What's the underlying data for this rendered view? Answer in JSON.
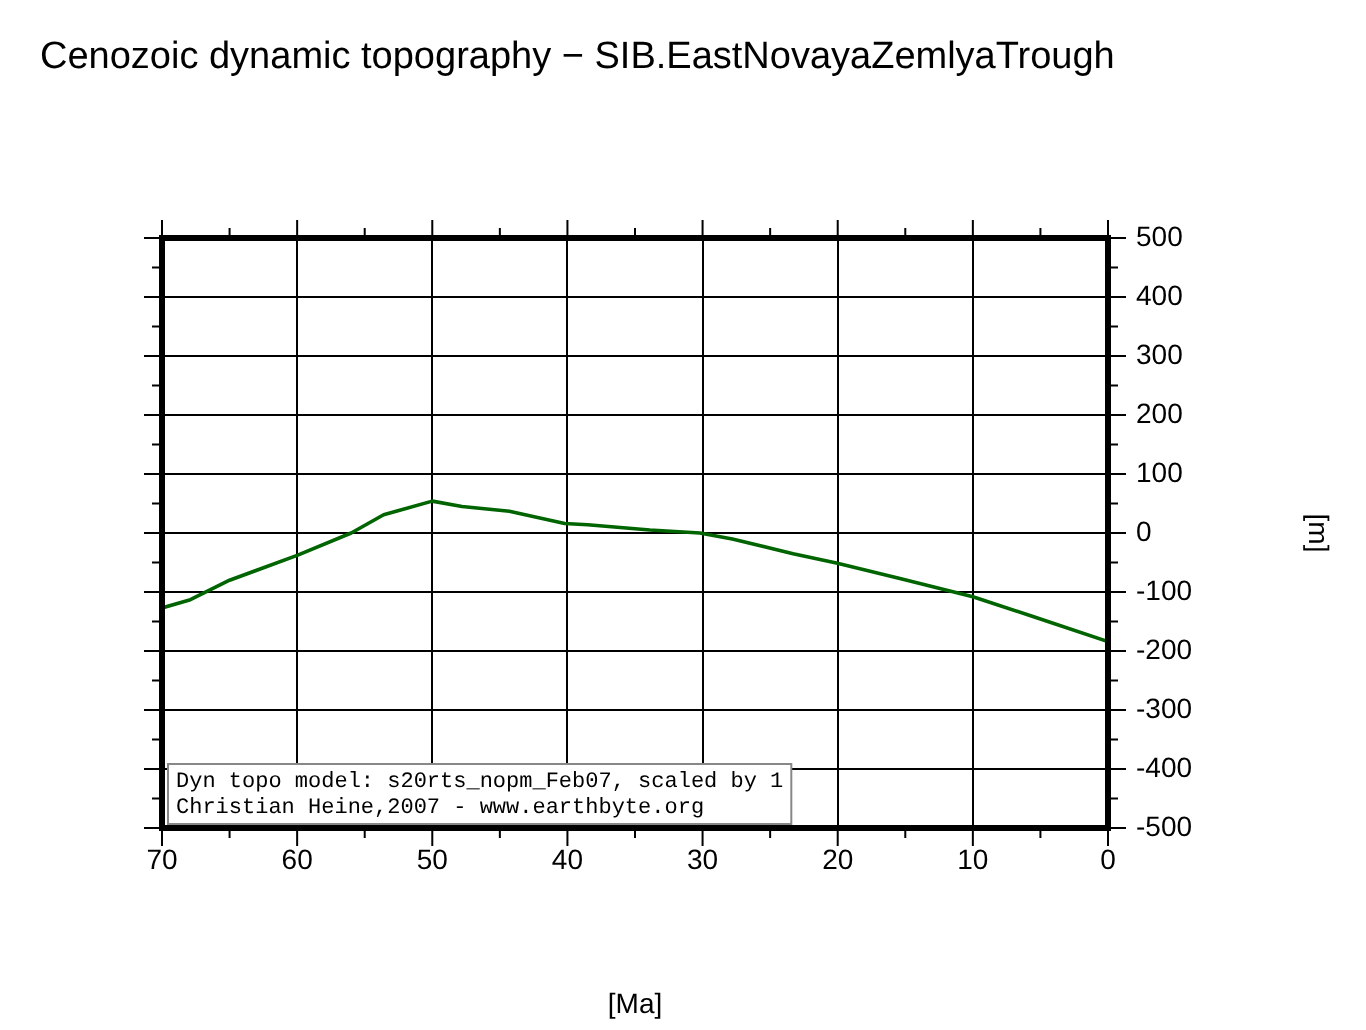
{
  "chart_data": {
    "type": "line",
    "title": "Cenozoic dynamic topography − SIB.EastNovayaZemlyaTrough",
    "xlabel": "[Ma]",
    "ylabel": "[m]",
    "x": [
      70,
      67.9,
      65,
      60,
      56,
      53.6,
      50,
      47.8,
      44.3,
      40.2,
      38.5,
      33.9,
      30.2,
      27.8,
      23.3,
      20.1,
      15.4,
      10,
      5.5,
      0
    ],
    "series": [
      {
        "color": "#006400",
        "values": [
          -127,
          -113,
          -80,
          -38,
          0,
          31,
          54,
          45,
          37,
          16,
          14,
          5,
          0,
          -10,
          -35,
          -51,
          -77,
          -108,
          -142,
          -184
        ]
      }
    ],
    "xlim": [
      70,
      0
    ],
    "xticks": [
      70,
      {
        "value": 65,
        "label": null
      },
      60,
      {
        "value": 55,
        "label": null
      },
      50,
      {
        "value": 45,
        "label": null
      },
      40,
      {
        "value": 35,
        "label": null
      },
      30,
      {
        "value": 25,
        "label": null
      },
      20,
      {
        "value": 15,
        "label": null
      },
      10,
      {
        "value": 5,
        "label": null
      },
      0
    ],
    "ylim": [
      -500,
      500
    ],
    "yticks": [
      -500,
      {
        "value": -450,
        "label": null
      },
      -400,
      {
        "value": -350,
        "label": null
      },
      -300,
      {
        "value": -250,
        "label": null
      },
      -200,
      {
        "value": -150,
        "label": null
      },
      -100,
      {
        "value": -50,
        "label": null
      },
      0,
      {
        "value": 50,
        "label": null
      },
      100,
      {
        "value": 150,
        "label": null
      },
      200,
      {
        "value": 250,
        "label": null
      },
      300,
      {
        "value": 350,
        "label": null
      },
      400,
      {
        "value": 450,
        "label": null
      },
      500
    ],
    "grid": true,
    "legend": false,
    "marker": "none",
    "line_style": "solid",
    "annotations": [
      "Dyn topo model: s20rts_nopm_Feb07, scaled by 1",
      "Christian Heine,2007 - www.earthbyte.org"
    ]
  }
}
